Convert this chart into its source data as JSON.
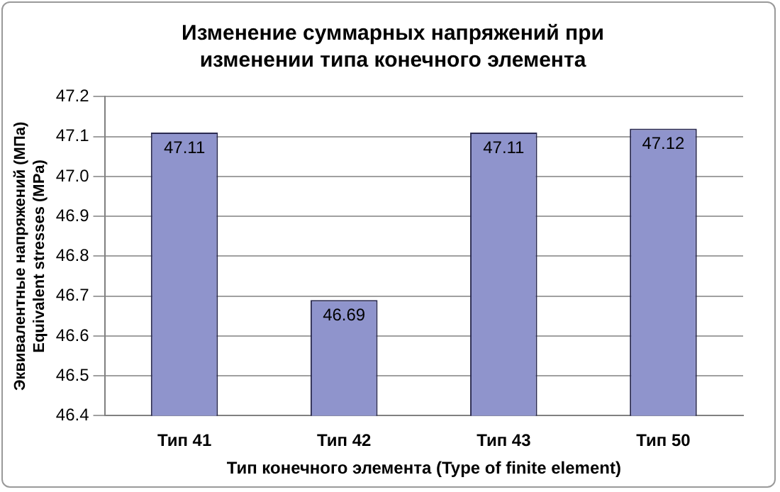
{
  "chart_data": {
    "type": "bar",
    "title": "Изменение суммарных напряжений при изменении типа конечного элемента",
    "xlabel": "Тип конечного элемента (Type of finite element)",
    "ylabel": "Эквивалентные напряжений (МПа)\nEquivalent stresses (MPa)",
    "categories": [
      "Тип 41",
      "Тип 42",
      "Тип 43",
      "Тип 50"
    ],
    "values": [
      47.11,
      46.69,
      47.11,
      47.12
    ],
    "color": "#8f94cc",
    "ylim": [
      46.4,
      47.2
    ],
    "yticks": [
      {
        "value": 46.4,
        "label": "46.4"
      },
      {
        "value": 46.5,
        "label": "46.5"
      },
      {
        "value": 46.6,
        "label": "46.6"
      },
      {
        "value": 46.7,
        "label": "46.7"
      },
      {
        "value": 46.8,
        "label": "46.8"
      },
      {
        "value": 46.9,
        "label": "46.9"
      },
      {
        "value": 47,
        "label": "47.0"
      },
      {
        "value": 47.1,
        "label": "47.1"
      },
      {
        "value": 47.2,
        "label": "47.2"
      }
    ],
    "grid": "y",
    "data_labels": true,
    "legend": false
  }
}
